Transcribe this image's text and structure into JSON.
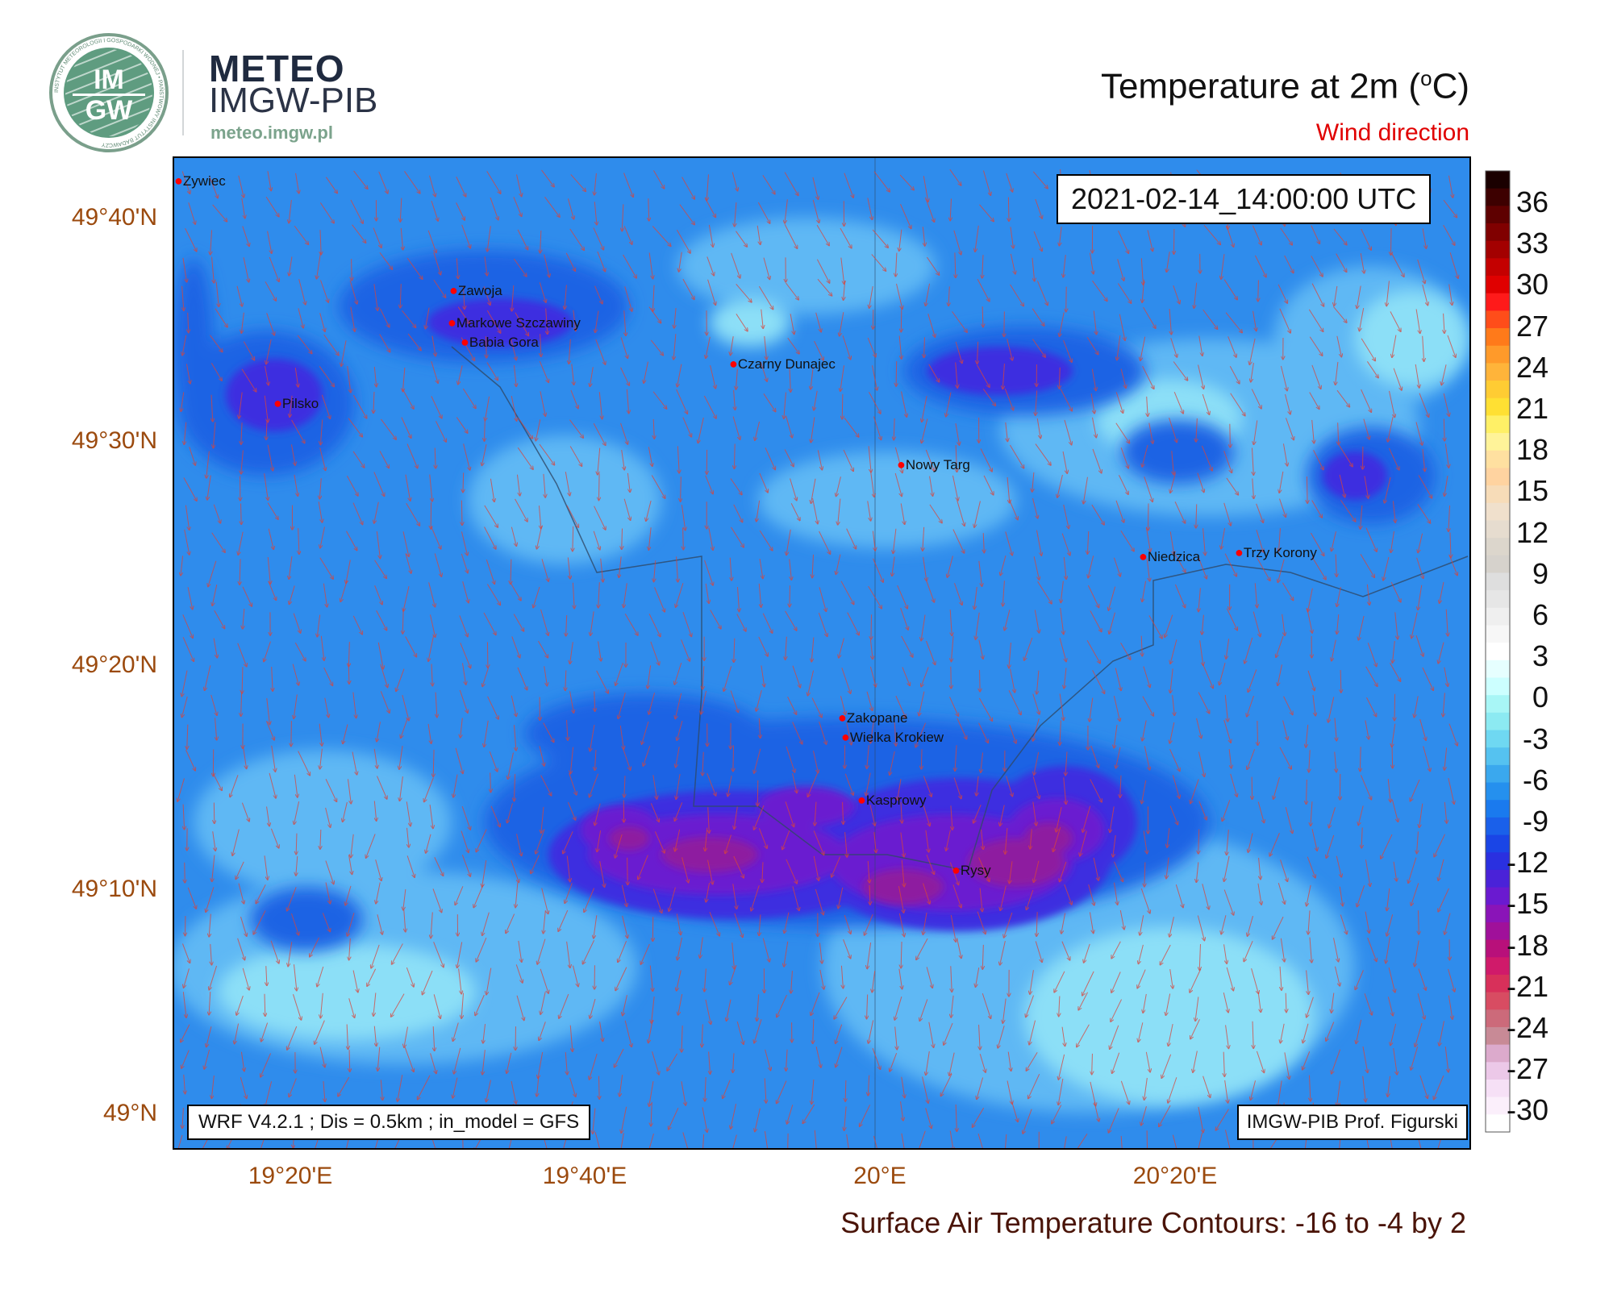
{
  "header": {
    "brand_name": "METEO",
    "brand_org": "IMGW-PIB",
    "brand_url": "meteo.imgw.pl",
    "logo_text_top": "IM",
    "logo_text_bottom": "GW",
    "logo_ring_text": "INSTYTUT METEOROLOGII I GOSPODARKI WODNEJ • PAŃSTWOWY INSTYTUT BADAWCZY"
  },
  "title": "Temperature at 2m (",
  "title_unit_sup": "o",
  "title_unit": "C)",
  "subtitle": "Wind direction",
  "valid_time": "2021-02-14_14:00:00 UTC",
  "model_info": "WRF V4.2.1 ; Dis = 0.5km ; in_model = GFS",
  "credit": "IMGW-PIB Prof. Figurski",
  "footer": "Surface Air Temperature Contours: -16 to -4 by 2",
  "axes": {
    "lat_labels": [
      "49°40'N",
      "49°30'N",
      "49°20'N",
      "49°10'N",
      "49°N"
    ],
    "lon_labels": [
      "19°20'E",
      "19°40'E",
      "20°E",
      "20°20'E"
    ]
  },
  "colorbar": {
    "labels": [
      "36",
      "33",
      "30",
      "27",
      "24",
      "21",
      "18",
      "15",
      "12",
      "9",
      "6",
      "3",
      "0",
      "-3",
      "-6",
      "-9",
      "-12",
      "-15",
      "-18",
      "-21",
      "-24",
      "-27",
      "-30"
    ],
    "colors": [
      "#1a0000",
      "#3d0000",
      "#5e0000",
      "#800000",
      "#a30000",
      "#c40000",
      "#e00000",
      "#ff1a1a",
      "#ff4d1a",
      "#ff7a1a",
      "#ff9a2a",
      "#ffb43a",
      "#ffcc33",
      "#ffe033",
      "#fff066",
      "#fff399",
      "#ffe0a0",
      "#ffd3a0",
      "#f7dcb8",
      "#f0e0cc",
      "#e6dccf",
      "#dcd6cc",
      "#d6d2cc",
      "#dedede",
      "#e6e6e6",
      "#efefef",
      "#f7f7f7",
      "#ffffff",
      "#e6ffff",
      "#ccffff",
      "#a8f6f6",
      "#8ceaf2",
      "#6fd8f2",
      "#55c2f0",
      "#3aa8ee",
      "#2590ee",
      "#1a7aee",
      "#1a60ea",
      "#1a45e6",
      "#2a30e0",
      "#4a22d8",
      "#6a1ad0",
      "#8a14b8",
      "#a0109a",
      "#b8107a",
      "#d01a6a",
      "#d8305a",
      "#d84c62",
      "#cc6a7a",
      "#c88a96",
      "#dcaacc",
      "#ecc8e8",
      "#f6e0f6",
      "#fbeffb",
      "#ffffff"
    ]
  },
  "cities": [
    {
      "name": "Zywiec"
    },
    {
      "name": "Zawoja"
    },
    {
      "name": "Markowe Szczawiny"
    },
    {
      "name": "Babia Gora"
    },
    {
      "name": "Pilsko"
    },
    {
      "name": "Czarny Dunajec"
    },
    {
      "name": "Nowy Targ"
    },
    {
      "name": "Niedzica"
    },
    {
      "name": "Trzy Korony"
    },
    {
      "name": "Zakopane"
    },
    {
      "name": "Wielka Krokiew"
    },
    {
      "name": "Kasprowy"
    },
    {
      "name": "Rysy"
    }
  ],
  "colors": {
    "axis_label": "#9b4a0e",
    "wind_arrow": "#d9443a",
    "city_marker": "#ff0000",
    "subtitle": "#e00000"
  }
}
